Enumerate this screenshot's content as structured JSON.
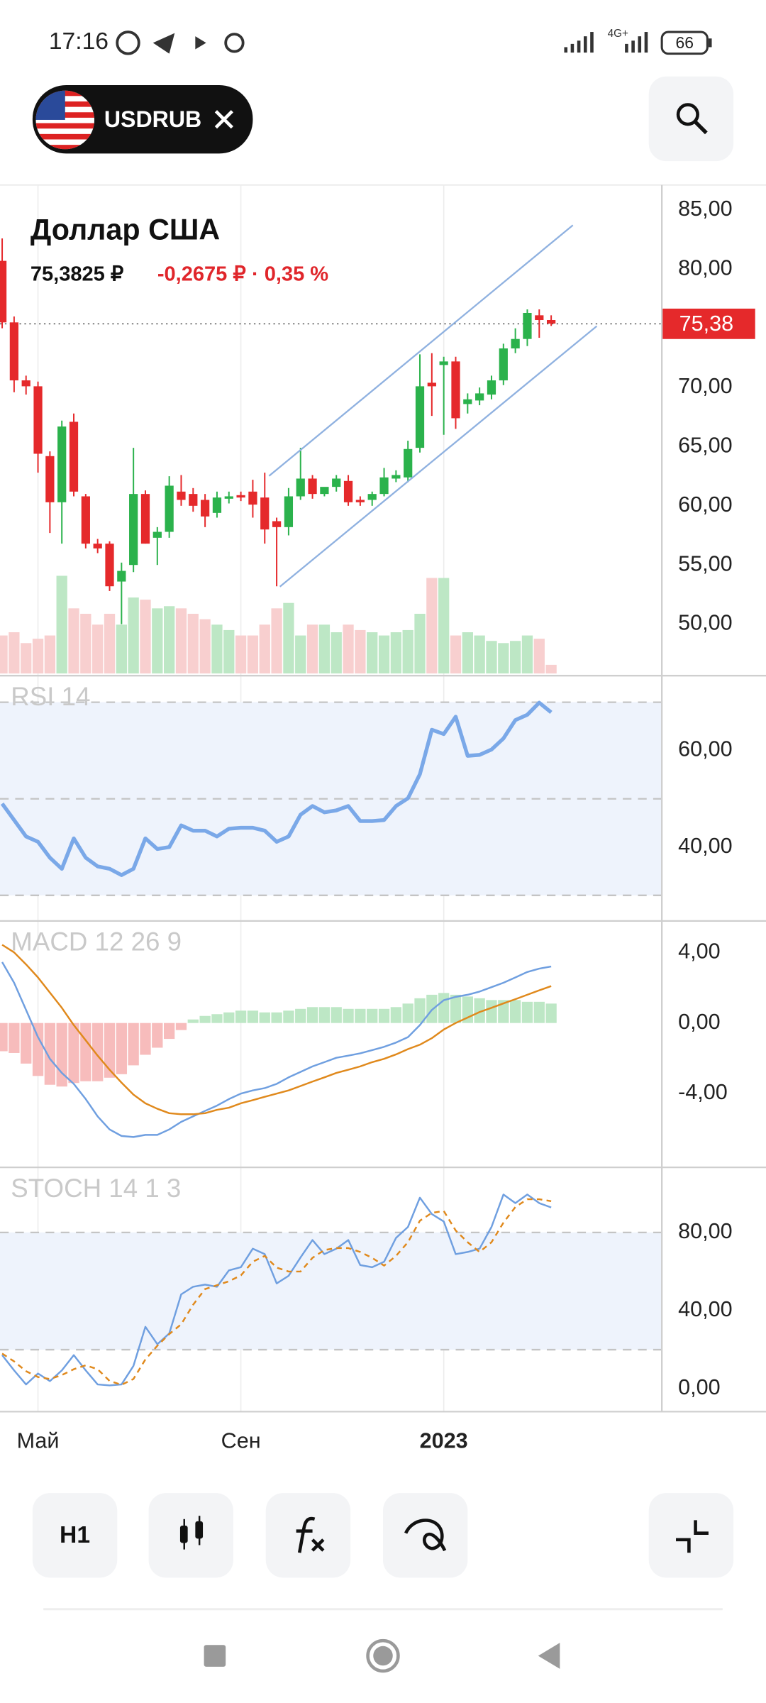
{
  "status_bar": {
    "time": "17:16",
    "network": "4G+",
    "battery": "66"
  },
  "header": {
    "symbol": "USDRUB"
  },
  "toolbar": {
    "interval": "H1"
  },
  "chart_data": [
    {
      "type": "candlestick",
      "title": "Доллар США",
      "price": "75,3825 ₽",
      "change": "-0,2675 ₽ · 0,35 %",
      "categories": [
        null,
        null,
        null,
        "Май",
        null,
        null,
        null,
        null,
        null,
        null,
        null,
        null,
        null,
        null,
        null,
        null,
        null,
        null,
        null,
        null,
        "Сен",
        null,
        null,
        null,
        null,
        null,
        null,
        null,
        null,
        null,
        null,
        null,
        null,
        null,
        null,
        null,
        null,
        "2023",
        null,
        null,
        null,
        null,
        null,
        null,
        null,
        null,
        null
      ],
      "open": [
        80.7,
        75.5,
        70.6,
        70.1,
        64.2,
        60.3,
        67.1,
        60.8,
        56.8,
        56.8,
        53.6,
        55.0,
        61.0,
        57.3,
        57.8,
        61.2,
        61.0,
        60.5,
        59.4,
        60.6,
        60.9,
        61.2,
        60.7,
        58.7,
        58.2,
        60.8,
        62.3,
        61.0,
        61.6,
        62.1,
        60.5,
        60.5,
        61.0,
        62.3,
        62.4,
        64.9,
        70.4,
        71.9,
        72.2,
        68.6,
        68.9,
        69.4,
        70.6,
        73.3,
        74.1,
        76.1,
        75.7
      ],
      "high": [
        82.6,
        76.0,
        71.0,
        70.5,
        64.6,
        67.2,
        67.8,
        61.0,
        57.2,
        57.0,
        55.2,
        64.9,
        61.3,
        58.2,
        62.5,
        62.6,
        61.5,
        61.0,
        61.2,
        61.2,
        61.2,
        62.2,
        62.8,
        59.0,
        61.5,
        64.9,
        62.6,
        61.5,
        62.6,
        62.6,
        60.8,
        61.2,
        63.2,
        63.0,
        65.5,
        72.8,
        72.9,
        72.6,
        72.6,
        69.5,
        70.0,
        71.0,
        73.7,
        75.0,
        76.6,
        76.6,
        76.1
      ],
      "low": [
        75.0,
        69.6,
        69.4,
        62.8,
        57.7,
        56.8,
        60.8,
        56.4,
        56.0,
        52.8,
        50.0,
        54.4,
        56.8,
        55.0,
        57.3,
        60.0,
        59.5,
        58.2,
        59.0,
        60.2,
        60.4,
        59.0,
        56.8,
        53.2,
        57.5,
        60.5,
        60.6,
        60.8,
        61.2,
        60.0,
        60.0,
        60.0,
        60.8,
        62.0,
        62.0,
        64.5,
        67.6,
        66.0,
        66.5,
        67.8,
        68.5,
        69.0,
        70.2,
        72.9,
        73.5,
        74.2,
        75.2
      ],
      "close": [
        75.5,
        70.6,
        70.1,
        64.4,
        60.3,
        66.7,
        61.2,
        56.8,
        56.4,
        53.2,
        54.5,
        61.0,
        56.8,
        57.8,
        61.7,
        60.5,
        60.0,
        59.1,
        60.7,
        60.8,
        60.7,
        60.1,
        58.0,
        58.2,
        60.8,
        62.3,
        61.0,
        61.6,
        62.3,
        60.3,
        60.3,
        61.0,
        62.4,
        62.6,
        64.8,
        70.1,
        70.1,
        72.2,
        67.4,
        69.0,
        69.5,
        70.6,
        73.3,
        74.1,
        76.3,
        75.7,
        75.4
      ],
      "volume": [
        35,
        38,
        28,
        32,
        35,
        90,
        60,
        55,
        45,
        55,
        45,
        70,
        68,
        60,
        62,
        60,
        55,
        50,
        45,
        40,
        35,
        35,
        45,
        60,
        65,
        35,
        45,
        45,
        38,
        45,
        40,
        38,
        35,
        38,
        40,
        55,
        88,
        88,
        35,
        38,
        35,
        30,
        28,
        30,
        35,
        32,
        8
      ],
      "up_color": "#2bb24c",
      "down_color": "#e5292b",
      "volume_up_color": "#bde7c5",
      "volume_down_color": "#f8cfcf",
      "ylim": [
        45.83,
        87.11
      ],
      "yticks": [
        {
          "value": 85,
          "label": "85,00"
        },
        {
          "value": 80,
          "label": "80,00"
        },
        {
          "value": 70,
          "label": "70,00"
        },
        {
          "value": 65,
          "label": "65,00"
        },
        {
          "value": 60,
          "label": "60,00"
        },
        {
          "value": 55,
          "label": "55,00"
        },
        {
          "value": 50,
          "label": "50,00"
        }
      ],
      "last_price": {
        "value": 75.38,
        "label": "75,38"
      },
      "grid": "x"
    },
    {
      "type": "line",
      "title": "RSI 14",
      "ylim": [
        24.7,
        75.5
      ],
      "yticks": [
        {
          "value": 60,
          "label": "60,00"
        },
        {
          "value": 40,
          "label": "40,00"
        }
      ],
      "band": [
        30,
        70
      ],
      "band_color": "#eef3fc",
      "levels": [
        30,
        50,
        70
      ],
      "series": [
        {
          "color": "#7aa8e8",
          "style": "bold",
          "values": [
            49.0,
            45.6,
            42.2,
            41.1,
            37.8,
            35.5,
            41.8,
            37.8,
            36.0,
            35.5,
            34.2,
            35.5,
            41.8,
            39.6,
            40.0,
            44.5,
            43.4,
            43.4,
            42.2,
            43.8,
            44.0,
            44.0,
            43.4,
            41.1,
            42.2,
            46.7,
            48.5,
            47.2,
            47.6,
            48.5,
            45.4,
            45.4,
            45.6,
            48.5,
            50.1,
            55.1,
            64.3,
            63.4,
            67.0,
            58.9,
            59.1,
            60.2,
            62.5,
            66.3,
            67.4,
            69.9,
            67.9
          ]
        }
      ]
    },
    {
      "type": "line",
      "title": "MACD 12 26 9",
      "ylim": [
        -8.18,
        5.78
      ],
      "yticks": [
        {
          "value": 4,
          "label": "4,00"
        },
        {
          "value": 0,
          "label": "0,00"
        },
        {
          "value": -4,
          "label": "-4,00"
        }
      ],
      "series": [
        {
          "color": "#bde7c5",
          "negative_color": "#f7bcbc",
          "style": "bar",
          "values": [
            -1.6,
            -1.7,
            -2.3,
            -3.0,
            -3.5,
            -3.6,
            -3.4,
            -3.3,
            -3.3,
            -3.1,
            -2.9,
            -2.4,
            -1.8,
            -1.4,
            -0.9,
            -0.4,
            0.2,
            0.4,
            0.5,
            0.6,
            0.7,
            0.7,
            0.6,
            0.6,
            0.7,
            0.8,
            0.9,
            0.9,
            0.9,
            0.8,
            0.8,
            0.8,
            0.8,
            0.9,
            1.1,
            1.4,
            1.6,
            1.7,
            1.6,
            1.5,
            1.4,
            1.3,
            1.3,
            1.3,
            1.2,
            1.2,
            1.1
          ]
        },
        {
          "color": "#6f9fe0",
          "style": "line",
          "values": [
            3.45,
            2.28,
            0.74,
            -0.8,
            -2.03,
            -2.83,
            -3.45,
            -4.31,
            -5.29,
            -6.03,
            -6.4,
            -6.46,
            -6.34,
            -6.34,
            -6.03,
            -5.6,
            -5.29,
            -4.98,
            -4.68,
            -4.31,
            -4.0,
            -3.82,
            -3.69,
            -3.45,
            -3.08,
            -2.77,
            -2.46,
            -2.22,
            -1.97,
            -1.85,
            -1.72,
            -1.54,
            -1.35,
            -1.11,
            -0.8,
            -0.12,
            0.74,
            1.29,
            1.48,
            1.6,
            1.78,
            2.03,
            2.28,
            2.58,
            2.89,
            3.08,
            3.2
          ]
        },
        {
          "color": "#e0891c",
          "style": "line",
          "values": [
            4.43,
            4.0,
            3.32,
            2.58,
            1.72,
            0.86,
            -0.12,
            -0.98,
            -1.85,
            -2.65,
            -3.38,
            -4.06,
            -4.55,
            -4.86,
            -5.11,
            -5.17,
            -5.17,
            -5.11,
            -4.92,
            -4.8,
            -4.55,
            -4.37,
            -4.18,
            -4.0,
            -3.82,
            -3.57,
            -3.32,
            -3.08,
            -2.83,
            -2.65,
            -2.46,
            -2.22,
            -2.03,
            -1.78,
            -1.48,
            -1.23,
            -0.86,
            -0.37,
            0.0,
            0.31,
            0.62,
            0.86,
            1.11,
            1.35,
            1.6,
            1.85,
            2.09
          ]
        }
      ]
    },
    {
      "type": "line",
      "title": "STOCH 14 1 3",
      "ylim": [
        -11.7,
        113.3
      ],
      "yticks": [
        {
          "value": 80,
          "label": "80,00"
        },
        {
          "value": 40,
          "label": "40,00"
        },
        {
          "value": 0,
          "label": "0,00"
        }
      ],
      "band": [
        20,
        80
      ],
      "band_color": "#eef3fc",
      "levels": [
        20,
        80
      ],
      "series": [
        {
          "color": "#6f9fe0",
          "style": "line",
          "values": [
            17.2,
            9.4,
            2.2,
            7.8,
            3.9,
            9.4,
            17.2,
            9.4,
            2.2,
            1.7,
            2.2,
            11.7,
            31.7,
            22.8,
            28.3,
            48.3,
            52.2,
            53.3,
            52.2,
            60.6,
            62.2,
            71.7,
            68.9,
            53.9,
            57.8,
            67.2,
            76.1,
            68.9,
            71.7,
            76.1,
            63.3,
            62.2,
            65.0,
            77.2,
            82.8,
            97.8,
            89.4,
            85.6,
            68.9,
            70.0,
            71.7,
            82.8,
            99.4,
            95.0,
            99.4,
            95.0,
            92.8
          ]
        },
        {
          "color": "#e0891c",
          "style": "dashed",
          "values": [
            18,
            14,
            9,
            6,
            5,
            7,
            10,
            12,
            10,
            4,
            2,
            5,
            15,
            22,
            28,
            33,
            43,
            51,
            53,
            55,
            58,
            65,
            68,
            62,
            60,
            60,
            67,
            71,
            72,
            72,
            70,
            67,
            63,
            68,
            75,
            86,
            90,
            91,
            81,
            75,
            70,
            75,
            85,
            93,
            97,
            97,
            96
          ]
        }
      ]
    }
  ]
}
